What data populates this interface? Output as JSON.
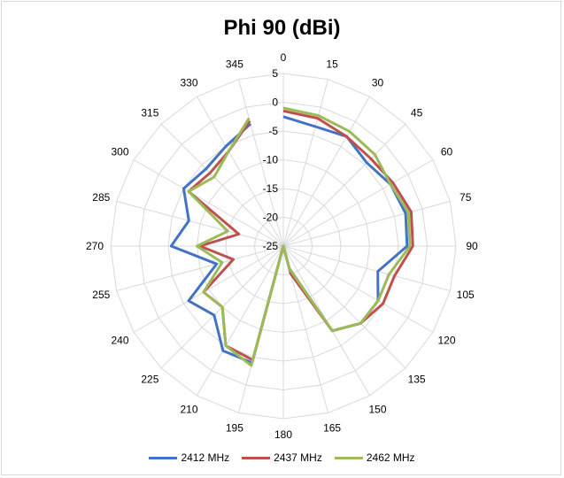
{
  "chart_data": {
    "type": "polar-line",
    "title": "Phi 90 (dBi)",
    "angle_ticks": [
      0,
      15,
      30,
      45,
      60,
      75,
      90,
      105,
      120,
      135,
      150,
      165,
      180,
      195,
      210,
      225,
      240,
      255,
      270,
      285,
      300,
      315,
      330,
      345
    ],
    "radial_ticks": [
      5,
      0,
      -5,
      -10,
      -15,
      -20,
      -25
    ],
    "rlim": [
      -25,
      5
    ],
    "grid": true,
    "legend_position": "bottom",
    "angles": [
      0,
      15,
      30,
      45,
      60,
      75,
      90,
      105,
      120,
      135,
      150,
      165,
      180,
      195,
      210,
      225,
      240,
      255,
      270,
      285,
      300,
      315,
      330,
      345
    ],
    "series": [
      {
        "name": "2412 MHz",
        "color": "#4472c4",
        "values": [
          -2.5,
          -3.5,
          -3,
          -4.5,
          -3.5,
          -3,
          -3.5,
          -8,
          -6,
          -6,
          -8,
          -21,
          -25,
          -4,
          -4,
          -8,
          -6,
          -13,
          -5.5,
          -8,
          -5,
          -6,
          -5,
          -3
        ]
      },
      {
        "name": "2437 MHz",
        "color": "#c0504d",
        "values": [
          -1.5,
          -2,
          -3,
          -3.5,
          -3,
          -2,
          -2.5,
          -5,
          -5,
          -6,
          -8,
          -20,
          -25,
          -4.5,
          -5,
          -10,
          -9,
          -16,
          -10.5,
          -17,
          -6,
          -7,
          -6,
          -2.5
        ]
      },
      {
        "name": "2462 MHz",
        "color": "#9bbb59",
        "values": [
          -1,
          -1.5,
          -2,
          -2.5,
          -3.5,
          -2.5,
          -3,
          -6,
          -6,
          -6,
          -8,
          -21,
          -25,
          -3.5,
          -5,
          -10,
          -9,
          -14,
          -10,
          -15,
          -6,
          -8,
          -6,
          -2
        ]
      }
    ]
  }
}
